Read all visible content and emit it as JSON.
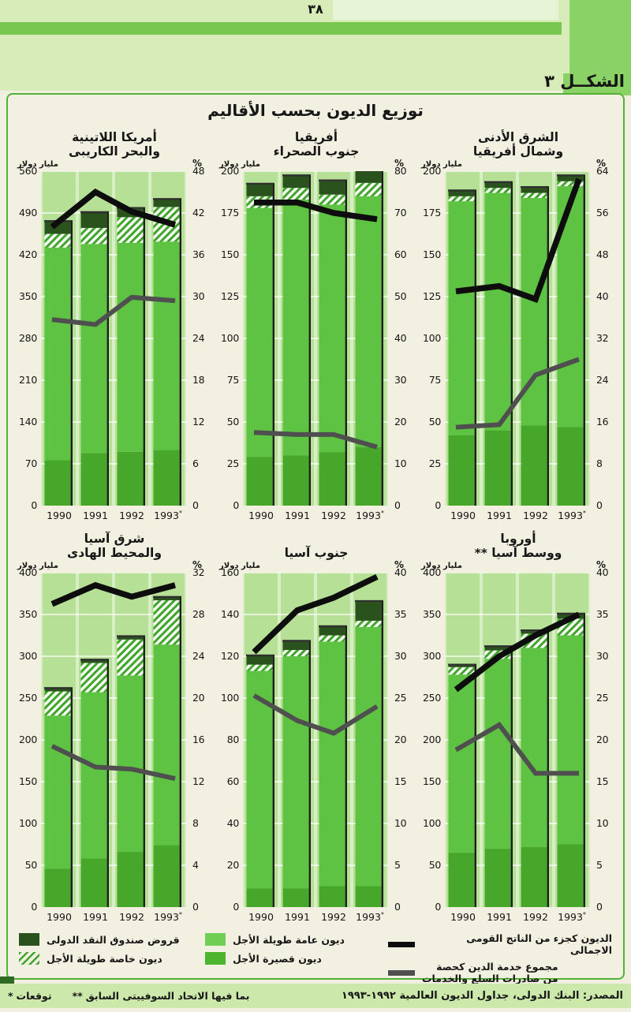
{
  "page": {
    "number": "٣٨",
    "figure_label": "الشكــل ٣",
    "title": "توزيع الديون بحسب الأقاليم"
  },
  "axes_units": {
    "left": "مليار دولار",
    "right": "%"
  },
  "legend": {
    "items": [
      {
        "key": "imf_credit",
        "label": "قروض صندوق النقد الدولى"
      },
      {
        "key": "private_long_term",
        "label": "ديون خاصة طويلة الأجل"
      },
      {
        "key": "public_long_term",
        "label": "ديون عامة طويلة الأجل"
      },
      {
        "key": "short_term",
        "label": "ديون قصيرة الأجل"
      },
      {
        "key": "debt_gnp",
        "label": "الديون كجزء من الناتج القومى الاجمالى"
      },
      {
        "key": "debt_service",
        "label_line1": "مجموع خدمة الدين كحصة",
        "label_line2": "من صادرات السلع والخدمات"
      }
    ]
  },
  "footer": {
    "footnote1_star": "*",
    "footnote1_text": "توقعات",
    "footnote2_star": "**",
    "footnote2_text": "بما فيها الاتحاد السوفييتى السابق",
    "source": "المصدر: البنك الدولى، جداول الديون العالمية ١٩٩٢-١٩٩٣"
  },
  "colors": {
    "header_bg": "#d7ecb8",
    "header_band": "#77c750",
    "side_band": "#8ad166",
    "frame_border": "#54b138",
    "frame_bg": "#f2f0e1",
    "plot_bg": "#d8eec5",
    "plot_strip": "#b6e095",
    "gridline": "#ffffff",
    "bar_public_long_term": "#5ec243",
    "bar_short_term": "#46a72b",
    "bar_imf_credit": "#2a521c",
    "hatch_stripe": "#3fa42c",
    "hatch_bg": "#f8fdf4",
    "line_black": "#0d0d0d",
    "line_gray": "#4f4f4f",
    "footer_bg": "#cce8ab"
  },
  "chart_data": [
    {
      "type": "stacked-bar+line",
      "region": "latin-america-caribbean",
      "title_lines": [
        "أمريكا اللاتينية",
        "والبحر الكاريبى"
      ],
      "categories": [
        "1990",
        "1991",
        "1992",
        "1993*"
      ],
      "left_axis": {
        "label": "مليار دولار",
        "max": 560,
        "step": 70
      },
      "right_axis": {
        "label": "%",
        "max": 48,
        "step": 6
      },
      "series": [
        {
          "name": "ديون قصيرة الأجل",
          "role": "short_term",
          "axis": "left",
          "values": [
            76,
            88,
            90,
            93
          ]
        },
        {
          "name": "ديون عامة طويلة الأجل",
          "role": "public_long_term",
          "axis": "left",
          "values": [
            356,
            350,
            350,
            349
          ]
        },
        {
          "name": "ديون خاصة طويلة الأجل",
          "role": "private_long_term",
          "axis": "left",
          "values": [
            23,
            27,
            43,
            58
          ]
        },
        {
          "name": "قروض صندوق النقد الدولى",
          "role": "imf_credit",
          "axis": "left",
          "values": [
            20,
            25,
            14,
            12
          ]
        },
        {
          "name": "الديون كجزء من الناتج القومى الاجمالى",
          "role": "debt_gnp",
          "type": "line",
          "axis": "right",
          "values": [
            40,
            45,
            42.2,
            40.3
          ]
        },
        {
          "name": "مجموع خدمة الدين كحصة من صادرات السلع والخدمات",
          "role": "debt_service",
          "type": "line",
          "axis": "right",
          "values": [
            26.7,
            26,
            29.9,
            29.4
          ]
        }
      ]
    },
    {
      "type": "stacked-bar+line",
      "region": "sub-saharan-africa",
      "title_lines": [
        "أفريقيا",
        "جنوب الصحراء"
      ],
      "categories": [
        "1990",
        "1991",
        "1992",
        "1993*"
      ],
      "left_axis": {
        "label": "مليار دولار",
        "max": 200,
        "step": 25
      },
      "right_axis": {
        "label": "%",
        "max": 80,
        "step": 10
      },
      "series": [
        {
          "name": "ديون قصيرة الأجل",
          "role": "short_term",
          "axis": "left",
          "values": [
            29,
            30,
            32,
            35
          ]
        },
        {
          "name": "ديون عامة طويلة الأجل",
          "role": "public_long_term",
          "axis": "left",
          "values": [
            149,
            153,
            148,
            150
          ]
        },
        {
          "name": "ديون خاصة طويلة الأجل",
          "role": "private_long_term",
          "axis": "left",
          "values": [
            7,
            7,
            6,
            8
          ]
        },
        {
          "name": "قروض صندوق النقد الدولى",
          "role": "imf_credit",
          "axis": "left",
          "values": [
            7,
            7,
            8,
            7
          ]
        },
        {
          "name": "الديون كجزء من الناتج القومى الاجمالى",
          "role": "debt_gnp",
          "type": "line",
          "axis": "right",
          "values": [
            72.5,
            72.5,
            70,
            68.5
          ]
        },
        {
          "name": "مجموع خدمة الدين كحصة من صادرات السلع والخدمات",
          "role": "debt_service",
          "type": "line",
          "axis": "right",
          "values": [
            17.5,
            17,
            17,
            14
          ]
        }
      ]
    },
    {
      "type": "stacked-bar+line",
      "region": "near-east-north-africa",
      "title_lines": [
        "الشرق الأدنى",
        "وشمال أفريقيا"
      ],
      "categories": [
        "1990",
        "1991",
        "1992",
        "1993*"
      ],
      "left_axis": {
        "label": "مليار دولار",
        "max": 200,
        "step": 25
      },
      "right_axis": {
        "label": "%",
        "max": 64,
        "step": 8
      },
      "series": [
        {
          "name": "ديون قصيرة الأجل",
          "role": "short_term",
          "axis": "left",
          "values": [
            42,
            45,
            48,
            47
          ]
        },
        {
          "name": "ديون عامة طويلة الأجل",
          "role": "public_long_term",
          "axis": "left",
          "values": [
            140,
            142,
            136,
            144
          ]
        },
        {
          "name": "ديون خاصة طويلة الأجل",
          "role": "private_long_term",
          "axis": "left",
          "values": [
            3,
            3,
            3,
            3
          ]
        },
        {
          "name": "قروض صندوق النقد الدولى",
          "role": "imf_credit",
          "axis": "left",
          "values": [
            3,
            3,
            3,
            3
          ]
        },
        {
          "name": "الديون كجزء من الناتج القومى الاجمالى",
          "role": "debt_gnp",
          "type": "line",
          "axis": "right",
          "values": [
            41,
            42,
            39.5,
            62.5
          ]
        },
        {
          "name": "مجموع خدمة الدين كحصة من صادرات السلع والخدمات",
          "role": "debt_service",
          "type": "line",
          "axis": "right",
          "values": [
            15,
            15.5,
            25,
            28
          ]
        }
      ]
    },
    {
      "type": "stacked-bar+line",
      "region": "east-asia-pacific",
      "title_lines": [
        "شرق آسيا",
        "والمحيط الهادى"
      ],
      "categories": [
        "1990",
        "1991",
        "1992",
        "1993*"
      ],
      "left_axis": {
        "label": "مليار دولار",
        "max": 400,
        "step": 50
      },
      "right_axis": {
        "label": "%",
        "max": 32,
        "step": 4
      },
      "series": [
        {
          "name": "ديون قصيرة الأجل",
          "role": "short_term",
          "axis": "left",
          "values": [
            46,
            58,
            66,
            74
          ]
        },
        {
          "name": "ديون عامة طويلة الأجل",
          "role": "public_long_term",
          "axis": "left",
          "values": [
            183,
            199,
            211,
            240
          ]
        },
        {
          "name": "ديون خاصة طويلة الأجل",
          "role": "private_long_term",
          "axis": "left",
          "values": [
            29,
            35,
            43,
            53
          ]
        },
        {
          "name": "قروض صندوق النقد الدولى",
          "role": "imf_credit",
          "axis": "left",
          "values": [
            3,
            3,
            3,
            3
          ]
        },
        {
          "name": "الديون كجزء من الناتج القومى الاجمالى",
          "role": "debt_gnp",
          "type": "line",
          "axis": "right",
          "values": [
            29,
            30.8,
            29.7,
            30.8
          ]
        },
        {
          "name": "مجموع خدمة الدين كحصة من صادرات السلع والخدمات",
          "role": "debt_service",
          "type": "line",
          "axis": "right",
          "values": [
            15.4,
            13.4,
            13.2,
            12.3
          ]
        }
      ]
    },
    {
      "type": "stacked-bar+line",
      "region": "south-asia",
      "title_lines": [
        "جنوب آسيا"
      ],
      "categories": [
        "1990",
        "1991",
        "1992",
        "1993*"
      ],
      "left_axis": {
        "label": "مليار دولار",
        "max": 160,
        "step": 20
      },
      "right_axis": {
        "label": "%",
        "max": 40,
        "step": 5
      },
      "series": [
        {
          "name": "ديون قصيرة الأجل",
          "role": "short_term",
          "axis": "left",
          "values": [
            9,
            9,
            10,
            10
          ]
        },
        {
          "name": "ديون عامة طويلة الأجل",
          "role": "public_long_term",
          "axis": "left",
          "values": [
            104,
            111,
            117,
            124
          ]
        },
        {
          "name": "ديون خاصة طويلة الأجل",
          "role": "private_long_term",
          "axis": "left",
          "values": [
            3,
            3,
            3,
            3
          ]
        },
        {
          "name": "قروض صندوق النقد الدولى",
          "role": "imf_credit",
          "axis": "left",
          "values": [
            4,
            4,
            4,
            9
          ]
        },
        {
          "name": "الديون كجزء من الناتج القومى الاجمالى",
          "role": "debt_gnp",
          "type": "line",
          "axis": "right",
          "values": [
            30.5,
            35.5,
            37,
            39.5
          ]
        },
        {
          "name": "مجموع خدمة الدين كحصة من صادرات السلع والخدمات",
          "role": "debt_service",
          "type": "line",
          "axis": "right",
          "values": [
            25.3,
            22.3,
            20.8,
            24
          ]
        }
      ]
    },
    {
      "type": "stacked-bar+line",
      "region": "europe-central-asia",
      "title_lines": [
        "أوروبا",
        "ووسط آسيا **"
      ],
      "categories": [
        "1990",
        "1991",
        "1992",
        "1993*"
      ],
      "left_axis": {
        "label": "مليار دولار",
        "max": 400,
        "step": 50
      },
      "right_axis": {
        "label": "%",
        "max": 40,
        "step": 5
      },
      "series": [
        {
          "name": "ديون قصيرة الأجل",
          "role": "short_term",
          "axis": "left",
          "values": [
            65,
            70,
            72,
            75
          ]
        },
        {
          "name": "ديون عامة طويلة الأجل",
          "role": "public_long_term",
          "axis": "left",
          "values": [
            213,
            227,
            238,
            250
          ]
        },
        {
          "name": "ديون خاصة طويلة الأجل",
          "role": "private_long_term",
          "axis": "left",
          "values": [
            9,
            10,
            17,
            20
          ]
        },
        {
          "name": "قروض صندوق النقد الدولى",
          "role": "imf_credit",
          "axis": "left",
          "values": [
            2,
            4,
            3,
            5
          ]
        },
        {
          "name": "الديون كجزء من الناتج القومى الاجمالى",
          "role": "debt_gnp",
          "type": "line",
          "axis": "right",
          "values": [
            26,
            30,
            32.5,
            35
          ]
        },
        {
          "name": "مجموع خدمة الدين كحصة من صادرات السلع والخدمات",
          "role": "debt_service",
          "type": "line",
          "axis": "right",
          "values": [
            18.8,
            21.8,
            16,
            16
          ]
        }
      ]
    }
  ]
}
